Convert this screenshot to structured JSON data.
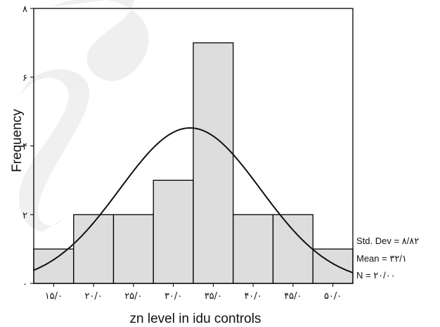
{
  "chart_data": {
    "type": "bar",
    "subtype": "histogram-with-normal-curve",
    "bins": [
      {
        "start": 12.5,
        "end": 17.5,
        "value": 1
      },
      {
        "start": 17.5,
        "end": 22.5,
        "value": 2
      },
      {
        "start": 22.5,
        "end": 27.5,
        "value": 2
      },
      {
        "start": 27.5,
        "end": 32.5,
        "value": 3
      },
      {
        "start": 32.5,
        "end": 37.5,
        "value": 7
      },
      {
        "start": 37.5,
        "end": 42.5,
        "value": 2
      },
      {
        "start": 42.5,
        "end": 47.5,
        "value": 2
      },
      {
        "start": 47.5,
        "end": 52.5,
        "value": 1
      }
    ],
    "x_ticks": [
      {
        "value": 15,
        "label": "۱۵/۰"
      },
      {
        "value": 20,
        "label": "۲۰/۰"
      },
      {
        "value": 25,
        "label": "۲۵/۰"
      },
      {
        "value": 30,
        "label": "۳۰/۰"
      },
      {
        "value": 35,
        "label": "۳۵/۰"
      },
      {
        "value": 40,
        "label": "۴۰/۰"
      },
      {
        "value": 45,
        "label": "۴۵/۰"
      },
      {
        "value": 50,
        "label": "۵۰/۰"
      }
    ],
    "y_ticks": [
      {
        "value": 0,
        "label": "۰"
      },
      {
        "value": 2,
        "label": "۲"
      },
      {
        "value": 4,
        "label": "۴"
      },
      {
        "value": 6,
        "label": "۶"
      },
      {
        "value": 8,
        "label": "۸"
      }
    ],
    "xlim": [
      12.5,
      52.5
    ],
    "ylim": [
      0,
      8
    ],
    "xlabel": "zn level in idu controls",
    "ylabel": "Frequency",
    "normal_curve": {
      "mean": 32.1,
      "std": 8.82,
      "n": 20,
      "bin_width": 5
    },
    "stats": {
      "std_dev": "Std. Dev = ۸/۸۲",
      "mean": "Mean = ۳۲/۱",
      "n": "N = ۲۰/۰۰"
    },
    "colors": {
      "bar_fill": "#dddddd",
      "bar_stroke": "#000000",
      "curve": "#111111"
    },
    "grid": false
  }
}
